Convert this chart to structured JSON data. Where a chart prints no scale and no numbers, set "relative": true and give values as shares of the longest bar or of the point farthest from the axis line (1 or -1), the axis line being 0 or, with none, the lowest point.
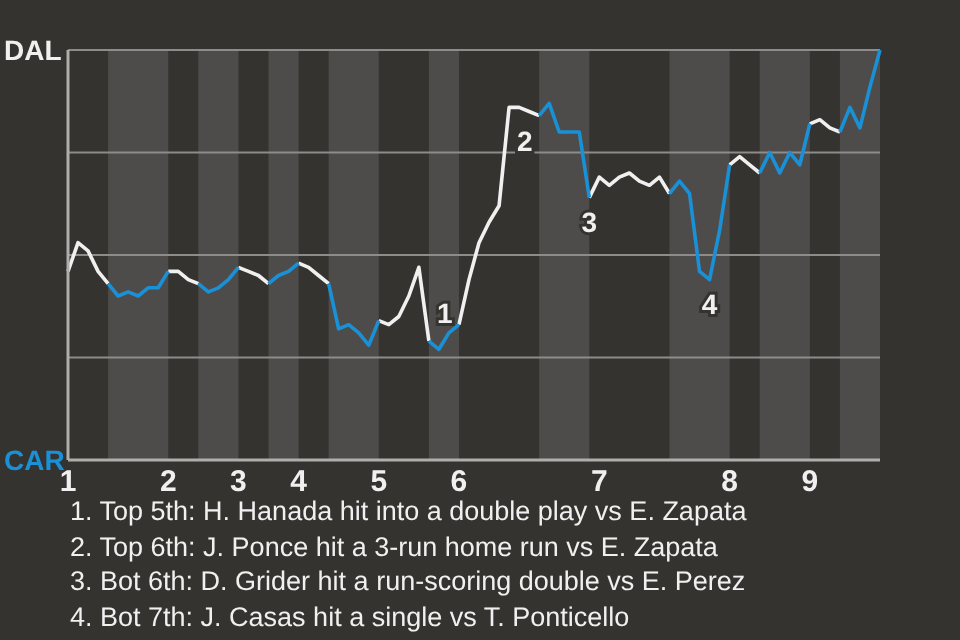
{
  "chart_data": {
    "type": "line",
    "relative": true,
    "categories": [
      "1",
      null,
      null,
      null,
      null,
      null,
      null,
      null,
      null,
      null,
      "2",
      null,
      null,
      null,
      null,
      null,
      null,
      "3",
      null,
      null,
      null,
      null,
      null,
      "4",
      null,
      null,
      null,
      null,
      null,
      null,
      null,
      "5",
      null,
      null,
      null,
      null,
      null,
      null,
      null,
      "6",
      null,
      null,
      null,
      null,
      null,
      null,
      null,
      null,
      null,
      null,
      null,
      null,
      null,
      "7",
      null,
      null,
      null,
      null,
      null,
      null,
      null,
      null,
      null,
      null,
      null,
      null,
      "8",
      null,
      null,
      null,
      null,
      null,
      null,
      null,
      "9",
      null,
      null,
      null,
      null,
      null,
      null,
      null
    ],
    "series": [
      {
        "name": "DAL",
        "color": "#f0f0f0",
        "values": [
          0.46,
          0.53,
          0.51,
          0.46,
          0.43,
          null,
          null,
          null,
          null,
          null,
          0.46,
          0.46,
          0.44,
          0.43,
          null,
          null,
          null,
          0.47,
          0.46,
          0.45,
          0.43,
          null,
          null,
          0.48,
          0.47,
          0.45,
          0.43,
          null,
          null,
          null,
          null,
          0.34,
          0.33,
          0.35,
          0.4,
          0.47,
          0.29,
          null,
          null,
          0.33,
          0.44,
          0.53,
          0.58,
          0.62,
          0.86,
          0.86,
          0.85,
          0.84,
          null,
          null,
          null,
          null,
          0.64,
          0.69,
          0.67,
          0.69,
          0.7,
          0.68,
          0.67,
          0.69,
          0.65,
          null,
          null,
          null,
          null,
          null,
          0.72,
          0.74,
          0.72,
          0.7,
          null,
          null,
          null,
          null,
          0.82,
          0.83,
          0.81,
          0.8,
          null,
          null,
          null,
          null
        ]
      },
      {
        "name": "CAR",
        "color": "#1a90d6",
        "values": [
          null,
          null,
          null,
          null,
          0.43,
          0.4,
          0.41,
          0.4,
          0.42,
          0.42,
          0.46,
          null,
          null,
          0.43,
          0.41,
          0.42,
          0.44,
          0.47,
          null,
          null,
          0.43,
          0.45,
          0.46,
          0.48,
          null,
          null,
          0.43,
          0.32,
          0.33,
          0.31,
          0.28,
          0.34,
          null,
          null,
          null,
          null,
          0.29,
          0.27,
          0.31,
          0.33,
          null,
          null,
          null,
          null,
          null,
          null,
          null,
          0.84,
          0.87,
          0.8,
          0.8,
          0.8,
          0.64,
          null,
          null,
          null,
          null,
          null,
          null,
          null,
          0.65,
          0.68,
          0.65,
          0.46,
          0.44,
          0.56,
          0.72,
          null,
          null,
          0.7,
          0.75,
          0.7,
          0.75,
          0.72,
          0.82,
          null,
          null,
          0.8,
          0.86,
          0.81,
          0.91,
          1
        ]
      }
    ],
    "legend": "left",
    "grid": "y",
    "annotations": [
      {
        "text": "1",
        "y": 0.29
      },
      {
        "text": "2",
        "y": 0.86
      },
      {
        "text": "3",
        "y": 0.64
      },
      {
        "text": "4",
        "y": 0.44
      },
      "1. Top 5th: H. Hanada hit into a double play vs E. Zapata",
      "2. Top 6th: J. Ponce hit a 3-run home run vs E. Zapata",
      "3. Bot 6th: D. Grider hit a run-scoring double vs E. Perez",
      "4. Bot 7th: J. Casas hit a single vs T. Ponticello"
    ],
    "marker": "none",
    "line_style": "solid"
  }
}
